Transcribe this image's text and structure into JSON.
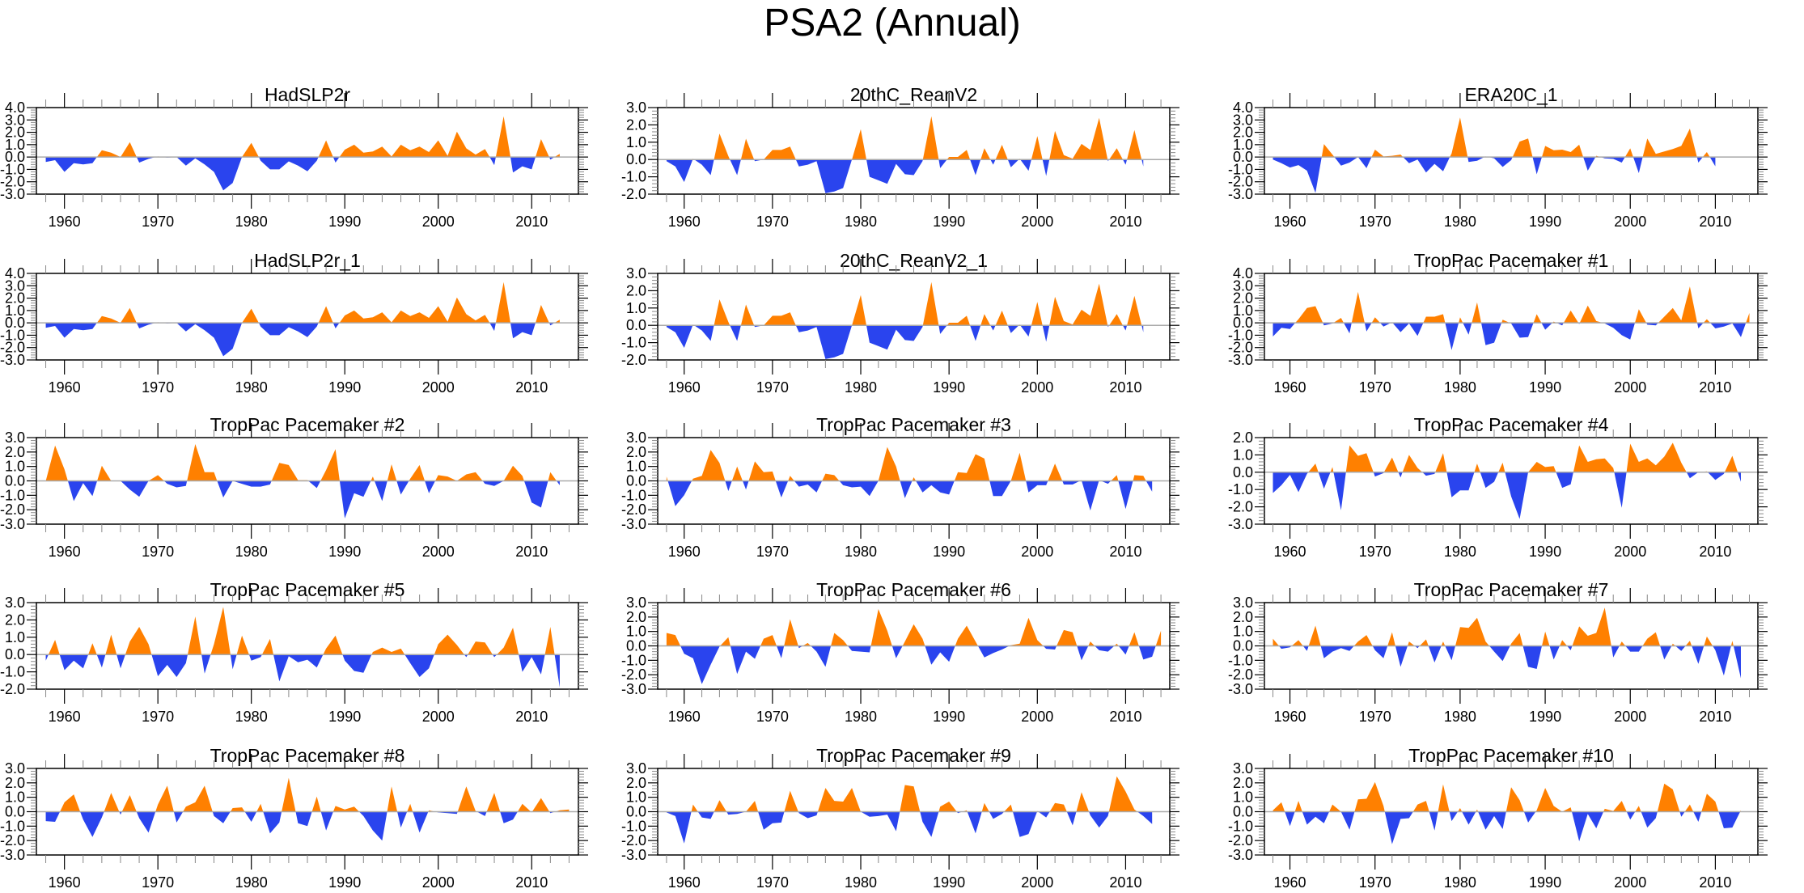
{
  "chart_data": {
    "type": "area",
    "title": "PSA2 (Annual)",
    "positive_color": "#ff8000",
    "negative_color": "#2a44ee",
    "x_start": 1958,
    "x_end": 2013,
    "xlim": [
      1957,
      2015
    ],
    "x_ticks": [
      1960,
      1970,
      1980,
      1990,
      2000,
      2010
    ],
    "x_tick_labels": [
      "1960",
      "1970",
      "1980",
      "1990",
      "2000",
      "2010"
    ],
    "layout": "5 rows x 3 columns",
    "panels": [
      {
        "title": "HadSLP2r",
        "ylim": [
          -3,
          4
        ],
        "y_ticks": [
          "4.0",
          "3.0",
          "2.0",
          "1.0",
          "0.0",
          "-1.0",
          "-2.0",
          "-3.0"
        ],
        "values": [
          -0.4,
          -0.25,
          -1.2,
          -0.5,
          -0.6,
          -0.5,
          0.55,
          0.35,
          0.0,
          1.2,
          -0.45,
          -0.15,
          0.05,
          -0.05,
          0.0,
          -0.7,
          -0.1,
          -0.6,
          -1.2,
          -2.7,
          -2.1,
          0.0,
          1.15,
          -0.3,
          -1.0,
          -1.0,
          -0.35,
          -0.7,
          -1.15,
          -0.3,
          1.35,
          -0.45,
          0.6,
          1.0,
          0.35,
          0.45,
          0.85,
          0.05,
          1.0,
          0.55,
          0.85,
          0.4,
          1.35,
          0.1,
          2.05,
          0.7,
          0.2,
          0.65,
          -0.65,
          3.3,
          -1.25,
          -0.75,
          -1.0,
          1.45,
          -0.2,
          0.25
        ]
      },
      {
        "title": "20thC_ReanV2",
        "ylim": [
          -2,
          3
        ],
        "y_ticks": [
          "3.0",
          "2.0",
          "1.0",
          "0.0",
          "-1.0",
          "-2.0"
        ],
        "values": [
          -0.1,
          -0.4,
          -1.3,
          0.05,
          -0.3,
          -0.9,
          1.5,
          0.2,
          -0.9,
          1.2,
          -0.1,
          0.0,
          0.55,
          0.55,
          0.75,
          -0.4,
          -0.3,
          -0.1,
          -1.95,
          -1.85,
          -1.65,
          0.0,
          1.75,
          -1.0,
          -1.2,
          -1.4,
          -0.25,
          -0.85,
          -0.9,
          -0.1,
          2.5,
          -0.5,
          0.15,
          0.15,
          0.55,
          -0.9,
          0.65,
          -0.3,
          0.85,
          -0.45,
          0.05,
          -0.65,
          1.35,
          -0.95,
          1.65,
          0.25,
          0.05,
          0.9,
          0.55,
          2.4,
          -0.1,
          0.65,
          -0.3,
          1.7,
          -0.4
        ]
      },
      {
        "title": "ERA20C_1",
        "ylim": [
          -3,
          4
        ],
        "y_ticks": [
          "4.0",
          "3.0",
          "2.0",
          "1.0",
          "0.0",
          "-1.0",
          "-2.0",
          "-3.0"
        ],
        "values": [
          -0.2,
          -0.5,
          -0.85,
          -0.65,
          -1.1,
          -2.9,
          1.05,
          0.2,
          -0.7,
          -0.45,
          0.0,
          -0.9,
          0.6,
          0.05,
          0.1,
          0.2,
          -0.5,
          -0.2,
          -1.25,
          -0.55,
          -1.15,
          0.3,
          3.2,
          -0.4,
          -0.3,
          0.05,
          -0.1,
          -0.8,
          -0.25,
          1.25,
          1.5,
          -1.4,
          0.9,
          0.55,
          0.6,
          0.4,
          1.0,
          -1.1,
          0.1,
          -0.1,
          -0.15,
          -0.45,
          0.7,
          -1.3,
          1.5,
          0.25,
          0.45,
          0.65,
          0.9,
          2.3,
          -0.45,
          0.4,
          -0.75
        ]
      },
      {
        "title": "HadSLP2r_1",
        "ylim": [
          -3,
          4
        ],
        "y_ticks": [
          "4.0",
          "3.0",
          "2.0",
          "1.0",
          "0.0",
          "-1.0",
          "-2.0",
          "-3.0"
        ],
        "values": [
          -0.4,
          -0.25,
          -1.2,
          -0.5,
          -0.6,
          -0.5,
          0.55,
          0.35,
          0.0,
          1.2,
          -0.45,
          -0.15,
          0.05,
          -0.05,
          0.0,
          -0.7,
          -0.1,
          -0.6,
          -1.2,
          -2.7,
          -2.1,
          0.0,
          1.15,
          -0.3,
          -1.0,
          -1.0,
          -0.35,
          -0.7,
          -1.15,
          -0.3,
          1.35,
          -0.45,
          0.6,
          1.0,
          0.35,
          0.45,
          0.85,
          0.05,
          1.0,
          0.55,
          0.85,
          0.4,
          1.35,
          0.1,
          2.05,
          0.7,
          0.2,
          0.65,
          -0.65,
          3.3,
          -1.25,
          -0.75,
          -1.0,
          1.45,
          -0.2,
          0.25
        ]
      },
      {
        "title": "20thC_ReanV2_1",
        "ylim": [
          -2,
          3
        ],
        "y_ticks": [
          "3.0",
          "2.0",
          "1.0",
          "0.0",
          "-1.0",
          "-2.0"
        ],
        "values": [
          -0.1,
          -0.4,
          -1.3,
          0.05,
          -0.3,
          -0.9,
          1.5,
          0.2,
          -0.9,
          1.2,
          -0.1,
          0.0,
          0.55,
          0.55,
          0.75,
          -0.4,
          -0.3,
          -0.1,
          -1.95,
          -1.85,
          -1.65,
          0.0,
          1.75,
          -1.0,
          -1.2,
          -1.4,
          -0.25,
          -0.85,
          -0.9,
          -0.1,
          2.5,
          -0.5,
          0.15,
          0.15,
          0.55,
          -0.9,
          0.65,
          -0.3,
          0.85,
          -0.45,
          0.05,
          -0.65,
          1.35,
          -0.95,
          1.65,
          0.25,
          0.05,
          0.9,
          0.55,
          2.4,
          -0.1,
          0.65,
          -0.3,
          1.7,
          -0.4
        ]
      },
      {
        "title": "TropPac Pacemaker #1",
        "ylim": [
          -3,
          4
        ],
        "y_ticks": [
          "4.0",
          "3.0",
          "2.0",
          "1.0",
          "0.0",
          "-1.0",
          "-2.0",
          "-3.0"
        ],
        "values": [
          -1.1,
          -0.4,
          -0.5,
          0.3,
          1.2,
          1.35,
          -0.2,
          -0.05,
          0.4,
          -0.85,
          2.5,
          -0.7,
          0.45,
          -0.3,
          0.05,
          -0.75,
          -0.05,
          -1.05,
          0.5,
          0.5,
          0.7,
          -2.2,
          0.45,
          -0.95,
          1.65,
          -1.8,
          -1.6,
          0.25,
          -0.05,
          -1.2,
          -1.15,
          0.7,
          -0.55,
          0.1,
          -0.2,
          1.0,
          -0.1,
          1.4,
          0.15,
          -0.05,
          -0.4,
          -1.0,
          -1.35,
          1.1,
          -0.15,
          -0.2,
          0.5,
          1.2,
          0.2,
          2.95,
          -0.45,
          0.3,
          -0.45,
          -0.3,
          -0.05,
          -1.15,
          0.8
        ]
      },
      {
        "title": "TropPac Pacemaker #2",
        "ylim": [
          -3,
          3
        ],
        "y_ticks": [
          "3.0",
          "2.0",
          "1.0",
          "0.0",
          "-1.0",
          "-2.0",
          "-3.0"
        ],
        "values": [
          0.0,
          2.45,
          0.8,
          -1.4,
          -0.15,
          -1.05,
          1.05,
          0.0,
          0.0,
          -0.6,
          -1.1,
          0.0,
          0.4,
          -0.2,
          -0.45,
          -0.35,
          2.55,
          0.6,
          0.6,
          -1.15,
          0.0,
          -0.2,
          -0.4,
          -0.4,
          -0.25,
          1.25,
          1.1,
          0.05,
          0.05,
          -0.5,
          0.75,
          2.2,
          -2.6,
          -0.85,
          -1.1,
          0.3,
          -1.4,
          1.15,
          -0.95,
          0.15,
          1.1,
          -0.85,
          0.4,
          0.3,
          0.0,
          0.45,
          0.6,
          -0.2,
          -0.35,
          0.0,
          1.05,
          0.35,
          -1.5,
          -1.85,
          0.6,
          -0.3
        ]
      },
      {
        "title": "TropPac Pacemaker #3",
        "ylim": [
          -3,
          3
        ],
        "y_ticks": [
          "3.0",
          "2.0",
          "1.0",
          "0.0",
          "-1.0",
          "-2.0",
          "-3.0"
        ],
        "values": [
          0.3,
          -1.75,
          -1.0,
          0.15,
          0.35,
          2.15,
          1.25,
          -0.7,
          1.0,
          -0.6,
          1.35,
          0.6,
          0.65,
          -1.15,
          0.35,
          -0.4,
          -0.25,
          -0.8,
          0.5,
          0.4,
          -0.3,
          -0.45,
          -0.4,
          -1.05,
          0.0,
          2.35,
          1.0,
          -1.2,
          0.25,
          -0.8,
          -0.3,
          -0.8,
          -0.95,
          0.6,
          0.55,
          1.85,
          1.55,
          -1.05,
          -1.05,
          0.0,
          1.95,
          -0.8,
          -0.3,
          -0.3,
          1.2,
          -0.25,
          -0.25,
          0.05,
          -2.05,
          0.05,
          -0.2,
          0.4,
          -1.95,
          0.4,
          0.35,
          -0.75
        ]
      },
      {
        "title": "TropPac Pacemaker #4",
        "ylim": [
          -3,
          2
        ],
        "y_ticks": [
          "2.0",
          "1.0",
          "0.0",
          "-1.0",
          "-2.0",
          "-3.0"
        ],
        "values": [
          -1.2,
          -0.75,
          -0.15,
          -1.15,
          -0.1,
          0.5,
          -0.95,
          0.3,
          -2.2,
          1.55,
          0.95,
          1.1,
          -0.25,
          -0.05,
          0.85,
          -0.3,
          1.0,
          0.25,
          -0.2,
          -0.1,
          1.1,
          -1.45,
          -1.05,
          -1.05,
          0.5,
          -0.9,
          -0.55,
          0.55,
          -1.4,
          -2.7,
          0.0,
          0.6,
          0.3,
          0.35,
          -0.9,
          -0.7,
          1.55,
          0.6,
          0.75,
          0.8,
          0.25,
          -2.05,
          1.65,
          0.6,
          0.8,
          0.4,
          0.9,
          1.7,
          0.55,
          -0.35,
          0.0,
          0.05,
          -0.45,
          -0.1,
          0.95,
          -0.55
        ]
      },
      {
        "title": "TropPac Pacemaker #5",
        "ylim": [
          -2,
          3
        ],
        "y_ticks": [
          "3.0",
          "2.0",
          "1.0",
          "0.0",
          "-1.0",
          "-2.0"
        ],
        "values": [
          -0.35,
          0.85,
          -0.9,
          -0.35,
          -0.8,
          0.65,
          -0.75,
          1.15,
          -0.8,
          0.75,
          1.6,
          0.6,
          -1.25,
          -0.6,
          -1.3,
          -0.5,
          2.2,
          -1.1,
          0.6,
          2.75,
          -0.85,
          1.1,
          -0.35,
          -0.15,
          0.9,
          -1.55,
          -0.1,
          -0.45,
          -0.3,
          -0.75,
          0.35,
          1.1,
          -0.35,
          -0.95,
          -1.05,
          0.15,
          0.4,
          0.15,
          0.35,
          -0.5,
          -1.3,
          -0.8,
          0.6,
          1.15,
          0.55,
          -0.15,
          0.75,
          0.7,
          -0.15,
          0.4,
          1.55,
          -1.0,
          -0.15,
          -1.15,
          1.6,
          -1.9
        ]
      },
      {
        "title": "TropPac Pacemaker #6",
        "ylim": [
          -3,
          3
        ],
        "y_ticks": [
          "3.0",
          "2.0",
          "1.0",
          "0.0",
          "-1.0",
          "-2.0",
          "-3.0"
        ],
        "values": [
          0.9,
          0.75,
          -0.55,
          -0.85,
          -2.65,
          -1.3,
          -0.05,
          0.6,
          -1.95,
          -0.4,
          -0.9,
          0.5,
          0.75,
          -0.85,
          1.85,
          -0.15,
          0.2,
          -0.4,
          -1.45,
          0.9,
          0.4,
          -0.35,
          -0.4,
          -0.45,
          2.55,
          1.05,
          -0.85,
          0.3,
          1.5,
          0.5,
          -1.3,
          -0.45,
          -1.1,
          0.5,
          1.4,
          0.3,
          -0.8,
          -0.5,
          -0.25,
          0.05,
          0.15,
          1.95,
          0.4,
          -0.2,
          -0.25,
          1.1,
          0.95,
          -1.0,
          0.3,
          -0.3,
          -0.4,
          0.15,
          -0.6,
          0.95,
          -0.95,
          -0.75,
          1.05
        ]
      },
      {
        "title": "TropPac Pacemaker #7",
        "ylim": [
          -3,
          3
        ],
        "y_ticks": [
          "3.0",
          "2.0",
          "1.0",
          "0.0",
          "-1.0",
          "-2.0",
          "-3.0"
        ],
        "values": [
          0.5,
          -0.2,
          -0.1,
          0.4,
          -0.35,
          1.4,
          -0.85,
          -0.4,
          -0.15,
          -0.35,
          0.3,
          0.75,
          -0.3,
          -0.85,
          0.95,
          -1.45,
          0.3,
          -0.15,
          0.45,
          -1.15,
          0.3,
          -1.0,
          1.3,
          1.25,
          1.95,
          0.3,
          -0.4,
          -1.05,
          0.15,
          0.9,
          -1.45,
          -1.6,
          1.0,
          -0.95,
          0.4,
          -0.3,
          1.35,
          0.7,
          0.9,
          2.65,
          -0.8,
          0.3,
          -0.4,
          -0.4,
          0.5,
          0.95,
          -0.95,
          0.15,
          -0.35,
          0.35,
          -1.25,
          0.65,
          -0.3,
          -2.05,
          0.35,
          -2.25
        ]
      },
      {
        "title": "TropPac Pacemaker #8",
        "ylim": [
          -3,
          3
        ],
        "y_ticks": [
          "3.0",
          "2.0",
          "1.0",
          "0.0",
          "-1.0",
          "-2.0",
          "-3.0"
        ],
        "values": [
          -0.65,
          -0.7,
          0.65,
          1.2,
          -0.55,
          -1.75,
          -0.4,
          1.3,
          -0.2,
          1.15,
          -0.45,
          -1.45,
          0.5,
          1.8,
          -0.75,
          0.35,
          0.65,
          1.8,
          -0.3,
          -0.8,
          0.25,
          0.3,
          -0.7,
          0.55,
          -1.5,
          -0.75,
          2.35,
          -0.8,
          -1.0,
          1.05,
          -1.3,
          0.4,
          0.15,
          0.35,
          -0.3,
          -1.3,
          -2.0,
          1.75,
          -1.1,
          0.55,
          -1.45,
          0.1,
          -0.05,
          -0.1,
          -0.15,
          1.75,
          0.05,
          -0.3,
          1.3,
          -0.8,
          -0.55,
          0.55,
          -0.05,
          0.95,
          -0.1,
          0.1,
          0.15
        ]
      },
      {
        "title": "TropPac Pacemaker #9",
        "ylim": [
          -3,
          3
        ],
        "y_ticks": [
          "3.0",
          "2.0",
          "1.0",
          "0.0",
          "-1.0",
          "-2.0",
          "-3.0"
        ],
        "values": [
          -0.05,
          -0.3,
          -2.2,
          0.5,
          -0.4,
          -0.5,
          0.8,
          -0.2,
          -0.15,
          0.0,
          0.75,
          -1.25,
          -0.8,
          -0.75,
          1.45,
          -0.1,
          -0.45,
          -0.25,
          1.65,
          0.75,
          0.7,
          1.65,
          0.0,
          -0.35,
          -0.3,
          -0.2,
          -1.35,
          1.85,
          1.75,
          -0.7,
          -1.75,
          0.35,
          0.7,
          -0.1,
          0.1,
          -1.5,
          0.6,
          -0.5,
          -0.15,
          0.5,
          -1.75,
          -1.55,
          0.05,
          -0.4,
          0.6,
          0.5,
          -0.95,
          1.35,
          -0.25,
          -1.1,
          -0.3,
          2.45,
          1.4,
          0.15,
          -0.3,
          -0.85
        ]
      },
      {
        "title": "TropPac Pacemaker #10",
        "ylim": [
          -3,
          3
        ],
        "y_ticks": [
          "3.0",
          "2.0",
          "1.0",
          "0.0",
          "-1.0",
          "-2.0",
          "-3.0"
        ],
        "values": [
          0.1,
          0.65,
          -1.0,
          0.75,
          -0.9,
          -0.35,
          -0.8,
          0.5,
          0.0,
          -1.25,
          0.85,
          0.9,
          2.05,
          0.4,
          -2.25,
          -0.5,
          -0.45,
          0.5,
          0.75,
          -1.3,
          1.9,
          -0.65,
          0.25,
          -0.9,
          0.15,
          -1.25,
          -0.3,
          -1.2,
          1.7,
          0.8,
          -0.75,
          0.1,
          1.65,
          0.4,
          0.0,
          0.3,
          -2.05,
          -0.15,
          -1.15,
          0.2,
          0.05,
          0.75,
          -0.55,
          0.4,
          -1.1,
          -0.45,
          1.95,
          1.55,
          -0.35,
          0.5,
          -0.7,
          1.25,
          0.7,
          -1.15,
          -1.1,
          0.1
        ]
      }
    ]
  }
}
